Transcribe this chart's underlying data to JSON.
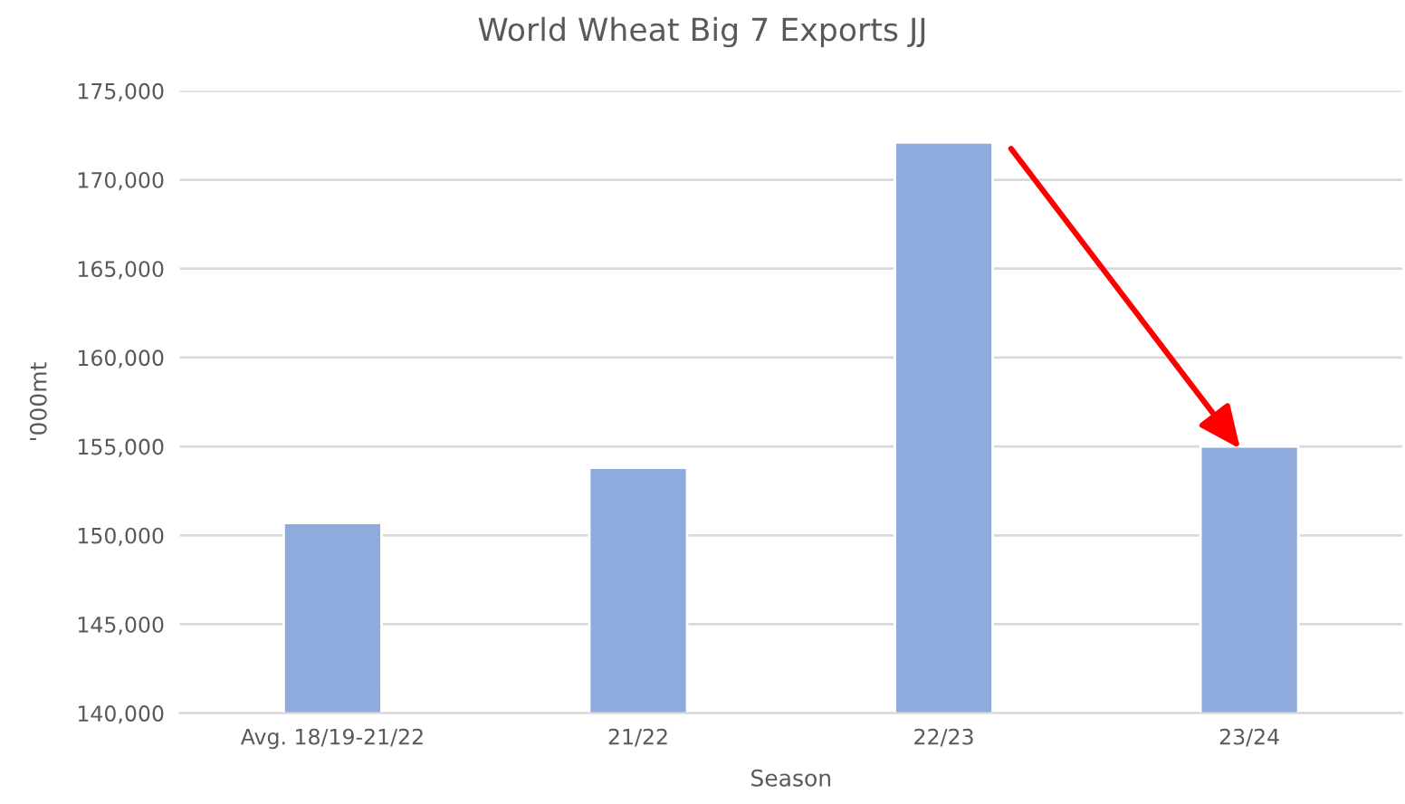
{
  "chart_data": {
    "type": "bar",
    "title": "World Wheat Big 7 Exports JJ",
    "xlabel": "Season",
    "ylabel": "'000mt",
    "categories": [
      "Avg. 18/19-21/22",
      "21/22",
      "22/23",
      "23/24"
    ],
    "values": [
      150700,
      153800,
      172100,
      155000
    ],
    "color": "#8faadc",
    "ylim": [
      140000,
      175000
    ],
    "yticks": [
      {
        "value": 140000,
        "label": "140,000"
      },
      {
        "value": 145000,
        "label": "145,000"
      },
      {
        "value": 150000,
        "label": "150,000"
      },
      {
        "value": 155000,
        "label": "155,000"
      },
      {
        "value": 160000,
        "label": "160,000"
      },
      {
        "value": 165000,
        "label": "165,000"
      },
      {
        "value": 170000,
        "label": "170,000"
      },
      {
        "value": 175000,
        "label": "175,000"
      }
    ],
    "grid": "y",
    "legend": false
  }
}
